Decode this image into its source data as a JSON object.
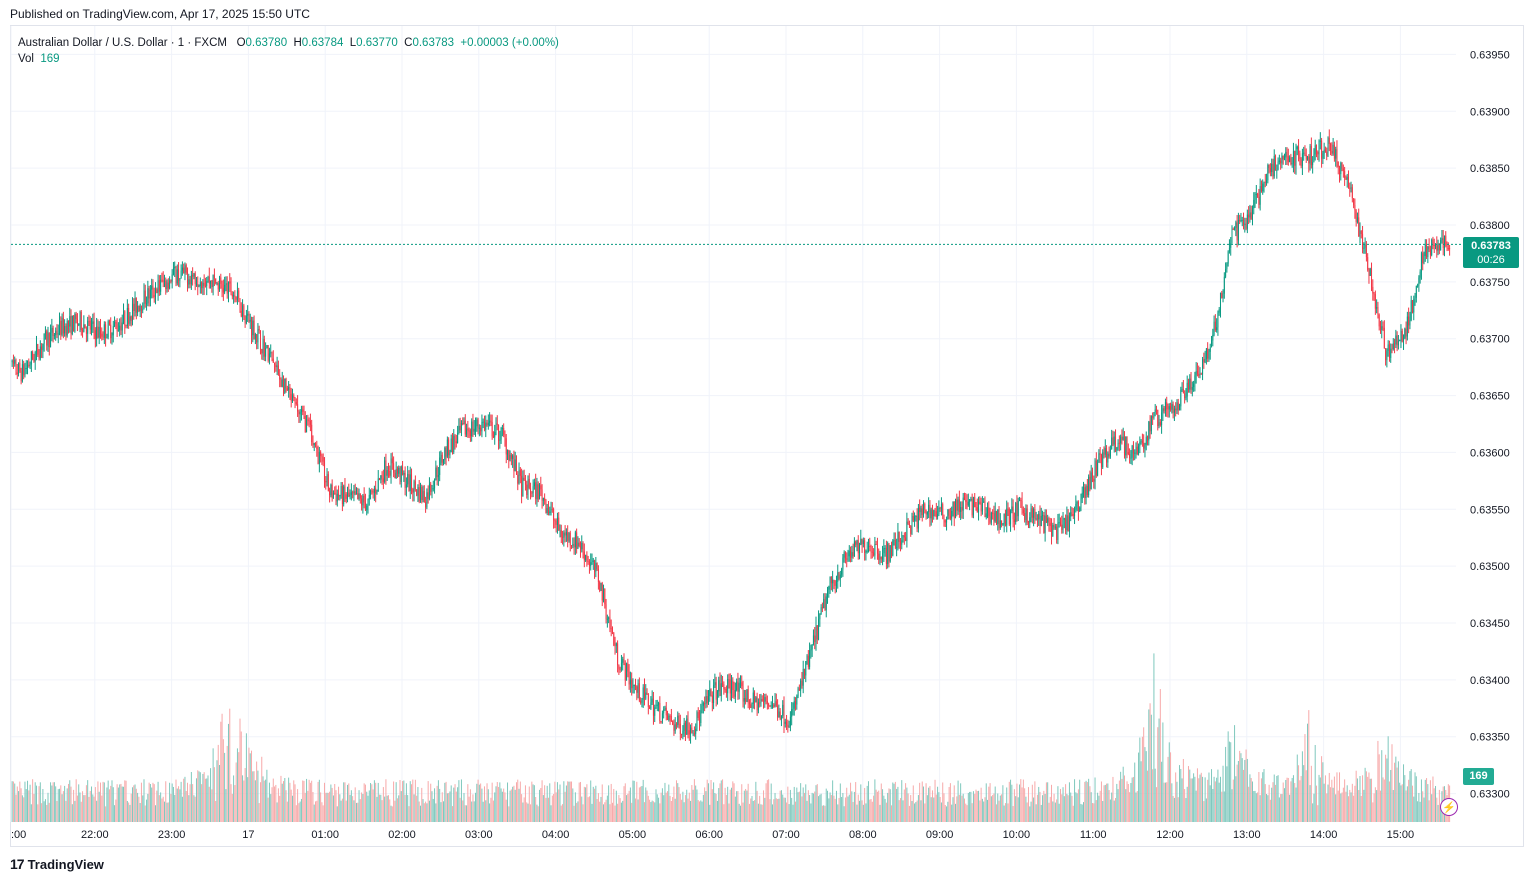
{
  "published": "Published on TradingView.com, Apr 17, 2025 15:50 UTC",
  "legend": {
    "symbol": "Australian Dollar / U.S. Dollar · 1 · FXCM",
    "o_label": "O",
    "o_value": "0.63780",
    "h_label": "H",
    "h_value": "0.63784",
    "l_label": "L",
    "l_value": "0.63770",
    "c_label": "C",
    "c_value": "0.63783",
    "change": "+0.00003 (+0.00%)",
    "vol_label": "Vol",
    "vol_value": "169"
  },
  "price_label": {
    "price": "0.63783",
    "countdown": "00:26"
  },
  "volume_label": "169",
  "footer": {
    "brand": "TradingView",
    "logo": "tradingview-logo-icon"
  },
  "colors": {
    "up": "#089981",
    "down": "#f23645",
    "vol_up": "#7fc8bd",
    "vol_down": "#f7a9a9",
    "grid": "#f0f3fa",
    "last_line": "#089981"
  },
  "chart_data": {
    "type": "candlestick",
    "title": "Australian Dollar / U.S. Dollar · 1 · FXCM",
    "ylim": [
      0.63275,
      0.63975
    ],
    "y_ticks": [
      "0.63950",
      "0.63900",
      "0.63850",
      "0.63800",
      "0.63750",
      "0.63700",
      "0.63650",
      "0.63600",
      "0.63550",
      "0.63500",
      "0.63450",
      "0.63400",
      "0.63350",
      "0.63300"
    ],
    "x_ticks": [
      ":00",
      "22:00",
      "23:00",
      "17",
      "01:00",
      "02:00",
      "03:00",
      "04:00",
      "05:00",
      "06:00",
      "07:00",
      "08:00",
      "09:00",
      "10:00",
      "11:00",
      "12:00",
      "13:00",
      "14:00",
      "15:00"
    ],
    "last_price": 0.63783,
    "price_path": [
      [
        "21:00",
        0.6368
      ],
      [
        "21:15",
        0.6367
      ],
      [
        "21:30",
        0.63695
      ],
      [
        "21:45",
        0.6371
      ],
      [
        "22:00",
        0.63715
      ],
      [
        "22:15",
        0.63705
      ],
      [
        "22:30",
        0.63712
      ],
      [
        "22:45",
        0.6373
      ],
      [
        "23:00",
        0.63745
      ],
      [
        "23:15",
        0.63757
      ],
      [
        "23:30",
        0.63755
      ],
      [
        "23:45",
        0.6375
      ],
      [
        "00:00",
        0.6374
      ],
      [
        "00:15",
        0.6371
      ],
      [
        "00:30",
        0.6368
      ],
      [
        "00:45",
        0.63645
      ],
      [
        "01:00",
        0.6362
      ],
      [
        "01:15",
        0.63565
      ],
      [
        "01:30",
        0.6356
      ],
      [
        "01:45",
        0.63555
      ],
      [
        "02:00",
        0.6359
      ],
      [
        "02:15",
        0.63575
      ],
      [
        "02:30",
        0.6356
      ],
      [
        "02:45",
        0.636
      ],
      [
        "03:00",
        0.6362
      ],
      [
        "03:15",
        0.63625
      ],
      [
        "03:30",
        0.63615
      ],
      [
        "03:45",
        0.6357
      ],
      [
        "04:00",
        0.63565
      ],
      [
        "04:15",
        0.6353
      ],
      [
        "04:30",
        0.6352
      ],
      [
        "04:45",
        0.6349
      ],
      [
        "05:00",
        0.6342
      ],
      [
        "05:15",
        0.6339
      ],
      [
        "05:30",
        0.63375
      ],
      [
        "05:45",
        0.6336
      ],
      [
        "06:00",
        0.6336
      ],
      [
        "06:15",
        0.6339
      ],
      [
        "06:30",
        0.63395
      ],
      [
        "06:45",
        0.6338
      ],
      [
        "07:00",
        0.6338
      ],
      [
        "07:15",
        0.63365
      ],
      [
        "07:30",
        0.6342
      ],
      [
        "07:45",
        0.6348
      ],
      [
        "08:00",
        0.6351
      ],
      [
        "08:15",
        0.6352
      ],
      [
        "08:30",
        0.6351
      ],
      [
        "08:45",
        0.6353
      ],
      [
        "09:00",
        0.6355
      ],
      [
        "09:15",
        0.63545
      ],
      [
        "09:30",
        0.63555
      ],
      [
        "09:45",
        0.6355
      ],
      [
        "10:00",
        0.6354
      ],
      [
        "10:15",
        0.6355
      ],
      [
        "10:30",
        0.6354
      ],
      [
        "10:45",
        0.6353
      ],
      [
        "11:00",
        0.6355
      ],
      [
        "11:15",
        0.6359
      ],
      [
        "11:30",
        0.6361
      ],
      [
        "11:45",
        0.636
      ],
      [
        "12:00",
        0.6363
      ],
      [
        "12:15",
        0.6364
      ],
      [
        "12:30",
        0.6366
      ],
      [
        "12:45",
        0.637
      ],
      [
        "13:00",
        0.6379
      ],
      [
        "13:15",
        0.6381
      ],
      [
        "13:30",
        0.6385
      ],
      [
        "13:45",
        0.6386
      ],
      [
        "14:00",
        0.6386
      ],
      [
        "14:15",
        0.6387
      ],
      [
        "14:30",
        0.6384
      ],
      [
        "14:45",
        0.6377
      ],
      [
        "15:00",
        0.6369
      ],
      [
        "15:15",
        0.637
      ],
      [
        "15:30",
        0.6378
      ],
      [
        "15:50",
        0.63783
      ]
    ],
    "volume_peaks": [
      [
        "00:00",
        250
      ],
      [
        "12:00",
        250
      ],
      [
        "13:00",
        150
      ],
      [
        "14:00",
        140
      ],
      [
        "15:00",
        145
      ]
    ],
    "last_volume": 169
  }
}
